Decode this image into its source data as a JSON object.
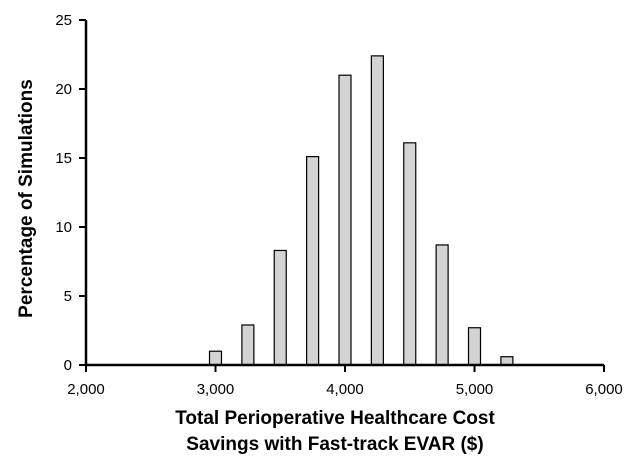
{
  "chart_data": {
    "type": "bar",
    "title": "",
    "xlabel": [
      "Total Perioperative Healthcare Cost",
      "Savings with Fast-track EVAR ($)"
    ],
    "ylabel": "Percentage of Simulations",
    "x": [
      3000,
      3250,
      3500,
      3750,
      4000,
      4250,
      4500,
      4750,
      5000,
      5250
    ],
    "values": [
      1.0,
      2.9,
      8.3,
      15.1,
      21.0,
      22.4,
      16.1,
      8.7,
      2.7,
      0.6
    ],
    "xlim": [
      2000,
      6000
    ],
    "ylim": [
      0,
      25
    ],
    "x_ticks": [
      2000,
      3000,
      4000,
      5000,
      6000
    ],
    "x_tick_labels": [
      "2,000",
      "3,000",
      "4,000",
      "5,000",
      "6,000"
    ],
    "y_ticks": [
      0,
      5,
      10,
      15,
      20,
      25
    ],
    "y_tick_labels": [
      "0",
      "5",
      "10",
      "15",
      "20",
      "25"
    ],
    "bar_color": "#d3d3d3",
    "grid": false,
    "legend": "none"
  }
}
